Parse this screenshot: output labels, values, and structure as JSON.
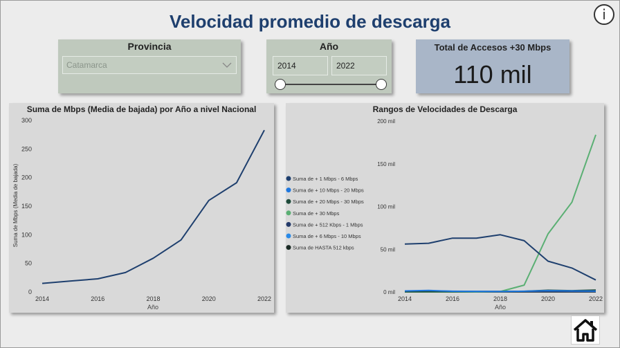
{
  "page": {
    "title": "Velocidad promedio de descarga"
  },
  "info_icon": "info-icon",
  "provincia": {
    "label": "Provincia",
    "value": "Catamarca",
    "icon": "chevron-down-icon"
  },
  "anio": {
    "label": "Año",
    "from": "2014",
    "to": "2022",
    "range_min": 2014,
    "range_max": 2022
  },
  "kpi": {
    "label": "Total de Accesos +30 Mbps",
    "value": "110 mil"
  },
  "home_icon": "home-icon",
  "chart_data": [
    {
      "type": "line",
      "title": "Suma de Mbps (Media de bajada) por Año a nivel Nacional",
      "xlabel": "Año",
      "ylabel": "Suma de Mbps (Media de bajada)",
      "x": [
        2014,
        2015,
        2016,
        2017,
        2018,
        2019,
        2020,
        2021,
        2022
      ],
      "series": [
        {
          "name": "Suma de Mbps (Media de bajada)",
          "color": "#1e3f6e",
          "values": [
            15,
            19,
            23,
            34,
            59,
            91,
            160,
            191,
            283
          ]
        }
      ],
      "xticks": [
        "2014",
        "2016",
        "2018",
        "2020",
        "2022"
      ],
      "yticks": [
        "0",
        "50",
        "100",
        "150",
        "200",
        "250",
        "300"
      ],
      "ylim": [
        0,
        300
      ],
      "grid": false,
      "legend": "none"
    },
    {
      "type": "line",
      "title": "Rangos de Velocidades de Descarga",
      "xlabel": "Año",
      "ylabel": "",
      "x": [
        2014,
        2015,
        2016,
        2017,
        2018,
        2019,
        2020,
        2021,
        2022
      ],
      "series": [
        {
          "name": "Suma de + 1 Mbps - 6 Mbps",
          "color": "#1e3f6e",
          "values": [
            56000,
            57000,
            63000,
            63000,
            67000,
            60000,
            36000,
            28000,
            14000
          ]
        },
        {
          "name": "Suma de + 10 Mbps - 20 Mbps",
          "color": "#1f78e0",
          "values": [
            1200,
            1800,
            800,
            600,
            500,
            900,
            1500,
            1200,
            1000
          ]
        },
        {
          "name": "Suma de + 20 Mbps - 30 Mbps",
          "color": "#1e4a3a",
          "values": [
            200,
            300,
            300,
            400,
            500,
            800,
            2000,
            1500,
            2200
          ]
        },
        {
          "name": "Suma de + 30 Mbps",
          "color": "#5aaf73",
          "values": [
            0,
            0,
            0,
            0,
            500,
            8000,
            68000,
            105000,
            184000
          ]
        },
        {
          "name": "Suma de + 512 Kbps - 1 Mbps",
          "color": "#243a6a",
          "values": [
            500,
            500,
            500,
            500,
            500,
            500,
            500,
            500,
            500
          ]
        },
        {
          "name": "Suma de + 6 Mbps - 10 Mbps",
          "color": "#2a8ae8",
          "values": [
            800,
            1200,
            900,
            700,
            600,
            800,
            900,
            800,
            700
          ]
        },
        {
          "name": "Suma de HASTA 512 kbps",
          "color": "#1a2a24",
          "values": [
            100,
            100,
            100,
            100,
            100,
            100,
            100,
            100,
            100
          ]
        }
      ],
      "xticks": [
        "2014",
        "2016",
        "2018",
        "2020",
        "2022"
      ],
      "yticks": [
        "0 mil",
        "50 mil",
        "100 mil",
        "150 mil",
        "200 mil"
      ],
      "ylim": [
        0,
        200000
      ],
      "grid": false,
      "legend": "left"
    }
  ]
}
